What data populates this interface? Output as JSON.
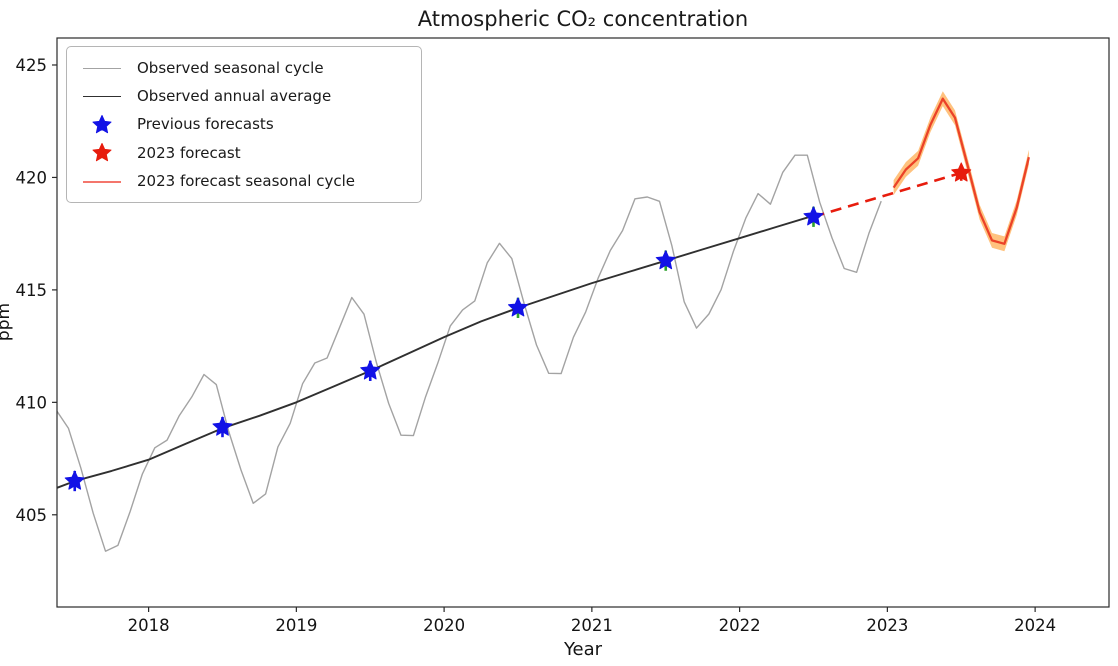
{
  "chart_data": {
    "type": "line",
    "title": "Atmospheric CO₂ concentration",
    "xlabel": "Year",
    "ylabel": "ppm",
    "xlim": [
      2017.38,
      2024.5
    ],
    "ylim": [
      400.9,
      426.2
    ],
    "xticks": [
      2018,
      2019,
      2020,
      2021,
      2022,
      2023,
      2024
    ],
    "yticks": [
      405,
      410,
      415,
      420,
      425
    ],
    "grid": false,
    "legend": {
      "position": "upper-left",
      "entries": [
        {
          "label": "Observed seasonal cycle",
          "marker": "line",
          "color": "#a3a3a3",
          "line_width": 1.4
        },
        {
          "label": "Observed annual average",
          "marker": "line",
          "color": "#303030",
          "line_width": 1.9
        },
        {
          "label": "Previous forecasts",
          "marker": "star",
          "color": "#1212e6"
        },
        {
          "label": "2023 forecast",
          "marker": "star",
          "color": "#e71c0d"
        },
        {
          "label": "2023 forecast seasonal cycle",
          "marker": "line",
          "color": "#f4766c",
          "line_width": 2.6
        }
      ]
    },
    "series": [
      {
        "name": "Observed seasonal cycle",
        "type": "line",
        "color": "#a3a3a3",
        "width": 1.4,
        "points": [
          [
            2017.375,
            409.65
          ],
          [
            2017.458,
            408.84
          ],
          [
            2017.542,
            407.07
          ],
          [
            2017.625,
            405.07
          ],
          [
            2017.708,
            403.38
          ],
          [
            2017.792,
            403.64
          ],
          [
            2017.875,
            405.14
          ],
          [
            2017.958,
            406.82
          ],
          [
            2018.042,
            407.98
          ],
          [
            2018.125,
            408.32
          ],
          [
            2018.208,
            409.41
          ],
          [
            2018.292,
            410.24
          ],
          [
            2018.375,
            411.24
          ],
          [
            2018.458,
            410.79
          ],
          [
            2018.542,
            408.71
          ],
          [
            2018.625,
            406.99
          ],
          [
            2018.708,
            405.51
          ],
          [
            2018.792,
            405.93
          ],
          [
            2018.875,
            408.02
          ],
          [
            2018.958,
            409.07
          ],
          [
            2019.042,
            410.83
          ],
          [
            2019.125,
            411.75
          ],
          [
            2019.208,
            411.97
          ],
          [
            2019.292,
            413.32
          ],
          [
            2019.375,
            414.66
          ],
          [
            2019.458,
            413.92
          ],
          [
            2019.542,
            411.77
          ],
          [
            2019.625,
            409.95
          ],
          [
            2019.708,
            408.54
          ],
          [
            2019.792,
            408.52
          ],
          [
            2019.875,
            410.25
          ],
          [
            2019.958,
            411.76
          ],
          [
            2020.042,
            413.4
          ],
          [
            2020.125,
            414.11
          ],
          [
            2020.208,
            414.51
          ],
          [
            2020.292,
            416.21
          ],
          [
            2020.375,
            417.07
          ],
          [
            2020.458,
            416.39
          ],
          [
            2020.542,
            414.38
          ],
          [
            2020.625,
            412.55
          ],
          [
            2020.708,
            411.29
          ],
          [
            2020.792,
            411.28
          ],
          [
            2020.875,
            412.89
          ],
          [
            2020.958,
            414.02
          ],
          [
            2021.042,
            415.52
          ],
          [
            2021.125,
            416.75
          ],
          [
            2021.208,
            417.64
          ],
          [
            2021.292,
            419.05
          ],
          [
            2021.375,
            419.13
          ],
          [
            2021.458,
            418.94
          ],
          [
            2021.542,
            416.96
          ],
          [
            2021.625,
            414.47
          ],
          [
            2021.708,
            413.3
          ],
          [
            2021.792,
            413.93
          ],
          [
            2021.875,
            415.01
          ],
          [
            2021.958,
            416.71
          ],
          [
            2022.042,
            418.19
          ],
          [
            2022.125,
            419.28
          ],
          [
            2022.208,
            418.81
          ],
          [
            2022.292,
            420.23
          ],
          [
            2022.375,
            420.99
          ],
          [
            2022.458,
            420.99
          ],
          [
            2022.542,
            418.9
          ],
          [
            2022.625,
            417.31
          ],
          [
            2022.708,
            415.95
          ],
          [
            2022.792,
            415.78
          ],
          [
            2022.875,
            417.51
          ],
          [
            2022.958,
            418.95
          ]
        ]
      },
      {
        "name": "Observed annual average",
        "type": "line",
        "color": "#303030",
        "width": 1.9,
        "points": [
          [
            2017.38,
            406.2
          ],
          [
            2017.5,
            406.5
          ],
          [
            2017.75,
            406.95
          ],
          [
            2018.0,
            407.45
          ],
          [
            2018.25,
            408.15
          ],
          [
            2018.5,
            408.85
          ],
          [
            2018.75,
            409.4
          ],
          [
            2019.0,
            410.0
          ],
          [
            2019.25,
            410.7
          ],
          [
            2019.5,
            411.4
          ],
          [
            2019.75,
            412.15
          ],
          [
            2020.0,
            412.9
          ],
          [
            2020.25,
            413.6
          ],
          [
            2020.5,
            414.2
          ],
          [
            2020.75,
            414.75
          ],
          [
            2021.0,
            415.3
          ],
          [
            2021.25,
            415.8
          ],
          [
            2021.5,
            416.3
          ],
          [
            2021.75,
            416.8
          ],
          [
            2022.0,
            417.3
          ],
          [
            2022.25,
            417.8
          ],
          [
            2022.5,
            418.3
          ]
        ]
      },
      {
        "name": "Previous forecasts",
        "type": "scatter-star",
        "color": "#1212e6",
        "marker_size": 10,
        "error": 0.45,
        "points": [
          [
            2017.5,
            406.5
          ],
          [
            2018.5,
            408.9
          ],
          [
            2019.5,
            411.4
          ],
          [
            2020.5,
            414.2
          ],
          [
            2021.5,
            416.3
          ],
          [
            2022.5,
            418.25
          ]
        ],
        "error_colors": [
          "#1212e6",
          "#1212e6",
          "#1212e6",
          "#2ca02c",
          "#2ca02c",
          "#2ca02c"
        ]
      },
      {
        "name": "2023 forecast link",
        "type": "dashed-line",
        "color": "#e71c0d",
        "width": 2.6,
        "dash": "11,7",
        "points": [
          [
            2022.5,
            418.25
          ],
          [
            2023.5,
            420.2
          ]
        ]
      },
      {
        "name": "2023 forecast",
        "type": "scatter-star",
        "color": "#e71c0d",
        "marker_size": 10,
        "error": 0.35,
        "points": [
          [
            2023.5,
            420.2
          ]
        ],
        "error_colors": [
          "#e71c0d"
        ]
      },
      {
        "name": "2023 forecast seasonal cycle",
        "type": "line-band",
        "color": "#e51e10",
        "line_alpha": 0.78,
        "band_color": "#ff9d2e",
        "band_alpha": 0.62,
        "band_halfwidth": 0.33,
        "width": 2.3,
        "points": [
          [
            2023.042,
            419.55
          ],
          [
            2023.125,
            420.35
          ],
          [
            2023.208,
            420.85
          ],
          [
            2023.292,
            422.35
          ],
          [
            2023.375,
            423.5
          ],
          [
            2023.458,
            422.65
          ],
          [
            2023.542,
            420.55
          ],
          [
            2023.625,
            418.45
          ],
          [
            2023.708,
            417.2
          ],
          [
            2023.792,
            417.05
          ],
          [
            2023.875,
            418.65
          ],
          [
            2023.958,
            420.9
          ]
        ]
      }
    ]
  }
}
